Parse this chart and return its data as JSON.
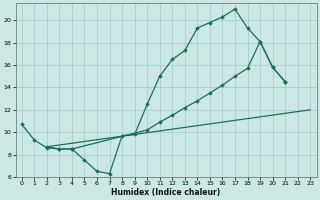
{
  "xlabel": "Humidex (Indice chaleur)",
  "bg_color": "#cce8e4",
  "grid_color": "#aad4cf",
  "line_color": "#1a6e65",
  "xlim": [
    -0.5,
    23.5
  ],
  "ylim": [
    6,
    21.5
  ],
  "yticks": [
    6,
    8,
    10,
    12,
    14,
    16,
    18,
    20
  ],
  "xticks": [
    0,
    1,
    2,
    3,
    4,
    5,
    6,
    7,
    8,
    9,
    10,
    11,
    12,
    13,
    14,
    15,
    16,
    17,
    18,
    19,
    20,
    21,
    22,
    23
  ],
  "curve1_x": [
    0,
    1,
    2,
    3,
    4,
    5,
    6,
    7,
    8,
    9,
    10,
    11,
    12,
    13,
    14,
    15,
    16,
    17,
    18,
    19,
    20,
    21
  ],
  "curve1_y": [
    10.7,
    9.3,
    8.6,
    8.5,
    8.5,
    7.5,
    6.5,
    6.3,
    9.7,
    9.8,
    12.5,
    15.0,
    16.5,
    17.3,
    19.3,
    19.8,
    20.3,
    21.0,
    19.3,
    18.1,
    15.8,
    14.5
  ],
  "curve2_x": [
    2,
    3,
    4,
    10,
    11,
    12,
    13,
    14,
    15,
    16,
    17,
    18,
    19,
    20,
    21
  ],
  "curve2_y": [
    8.7,
    8.5,
    8.5,
    10.2,
    10.9,
    11.5,
    12.2,
    12.8,
    13.5,
    14.2,
    15.0,
    15.7,
    18.1,
    15.8,
    14.5
  ],
  "line3_x": [
    2,
    23
  ],
  "line3_y": [
    8.7,
    12.0
  ]
}
